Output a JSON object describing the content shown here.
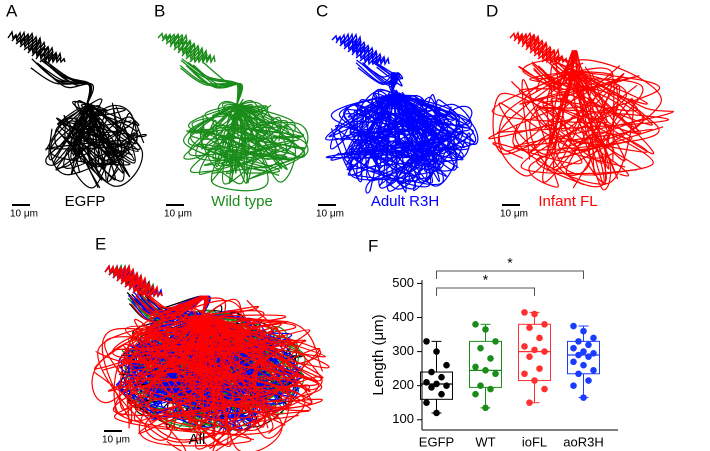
{
  "panels": [
    {
      "letter": "A",
      "caption": "EGFP",
      "color": "#000000",
      "scale_label": "10 μm"
    },
    {
      "letter": "B",
      "caption": "Wild type",
      "color": "#1a8c1a",
      "scale_label": "10 μm"
    },
    {
      "letter": "C",
      "caption": "Adult R3H",
      "color": "#0000ff",
      "scale_label": "10 μm"
    },
    {
      "letter": "D",
      "caption": "Infant FL",
      "color": "#ff0000",
      "scale_label": "10 μm"
    },
    {
      "letter": "E",
      "caption": "All",
      "color": "#000000",
      "scale_label": "10 μm"
    }
  ],
  "chart_data": {
    "type": "box",
    "letter": "F",
    "y_label": "Length (μm)",
    "categories": [
      "EGFP",
      "WT",
      "ioFL",
      "aoR3H"
    ],
    "colors": [
      "#000000",
      "#1a8c1a",
      "#ff3030",
      "#1a3cff"
    ],
    "ylim": [
      70,
      510
    ],
    "yticks": [
      100,
      200,
      300,
      400,
      500
    ],
    "boxes": [
      {
        "min": 120,
        "q1": 160,
        "median": 205,
        "q3": 240,
        "max": 330,
        "points": [
          330,
          300,
          260,
          240,
          225,
          210,
          205,
          200,
          195,
          175,
          150,
          120
        ]
      },
      {
        "min": 135,
        "q1": 195,
        "median": 245,
        "q3": 330,
        "max": 380,
        "points": [
          380,
          365,
          330,
          310,
          280,
          255,
          245,
          235,
          200,
          190,
          175,
          135
        ]
      },
      {
        "min": 150,
        "q1": 215,
        "median": 300,
        "q3": 380,
        "max": 415,
        "points": [
          415,
          410,
          380,
          370,
          340,
          315,
          305,
          300,
          285,
          250,
          235,
          215,
          190,
          150
        ]
      },
      {
        "min": 165,
        "q1": 235,
        "median": 290,
        "q3": 330,
        "max": 375,
        "points": [
          375,
          360,
          340,
          330,
          320,
          310,
          300,
          295,
          290,
          285,
          270,
          260,
          245,
          235,
          215,
          200,
          165
        ]
      }
    ],
    "significance": [
      {
        "pair": [
          "EGFP",
          "ioFL"
        ],
        "label": "*"
      },
      {
        "pair": [
          "EGFP",
          "aoR3H"
        ],
        "label": "*"
      }
    ]
  }
}
